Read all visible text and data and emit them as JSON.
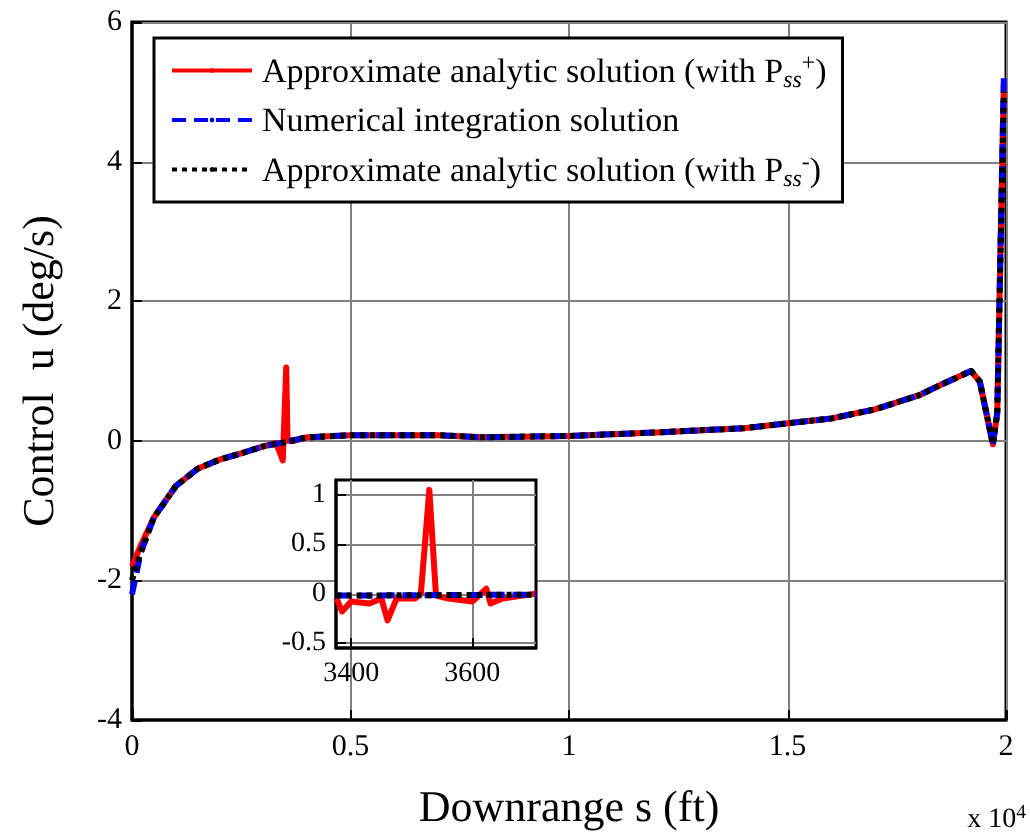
{
  "chart_data": [
    {
      "type": "line",
      "xlabel": "Downrange s (ft)",
      "ylabel": "Control  u (deg/s)",
      "annotations": [
        "x 10$^{4}$"
      ],
      "xlim": [
        0,
        2
      ],
      "ylim": [
        -4,
        6
      ],
      "xticks": [
        0,
        0.5,
        1,
        1.5,
        2
      ],
      "yticks": [
        -4,
        -2,
        0,
        2,
        4,
        6
      ],
      "grid": true,
      "legend": "top left",
      "marker": "none",
      "series": [
        {
          "name": "Approximate analytic solution (with P$_{ss}$$^{+}$)",
          "color": "#ff0000",
          "line_style": "solid",
          "x": [
            0,
            0.02,
            0.05,
            0.1,
            0.15,
            0.2,
            0.25,
            0.3,
            0.33,
            0.345,
            0.3529,
            0.356,
            0.37,
            0.4,
            0.5,
            0.7,
            0.8,
            1.0,
            1.2,
            1.4,
            1.5,
            1.6,
            1.7,
            1.8,
            1.85,
            1.92,
            1.94,
            1.97,
            1.98,
            1.995
          ],
          "values": [
            -1.8,
            -1.5,
            -1.1,
            -0.65,
            -0.4,
            -0.27,
            -0.18,
            -0.08,
            -0.03,
            -0.28,
            1.05,
            0.0,
            0.0,
            0.05,
            0.08,
            0.08,
            0.05,
            0.07,
            0.12,
            0.18,
            0.25,
            0.32,
            0.45,
            0.65,
            0.8,
            1.0,
            0.85,
            -0.05,
            0.4,
            5.1
          ]
        },
        {
          "name": "Numerical integration solution",
          "color": "#0000ff",
          "line_style": "dashed",
          "x": [
            0,
            0.02,
            0.05,
            0.1,
            0.15,
            0.2,
            0.25,
            0.3,
            0.35,
            0.4,
            0.5,
            0.7,
            0.8,
            1.0,
            1.2,
            1.4,
            1.5,
            1.6,
            1.7,
            1.8,
            1.85,
            1.92,
            1.94,
            1.97,
            1.98,
            1.995
          ],
          "values": [
            -2.2,
            -1.6,
            -1.1,
            -0.65,
            -0.4,
            -0.27,
            -0.18,
            -0.08,
            -0.02,
            0.05,
            0.08,
            0.08,
            0.05,
            0.07,
            0.12,
            0.18,
            0.25,
            0.32,
            0.45,
            0.65,
            0.8,
            1.0,
            0.85,
            -0.05,
            0.4,
            5.2
          ]
        },
        {
          "name": "Approximate analytic solution (with P$_{ss}$$^{-}$)",
          "color": "#000000",
          "line_style": "dotted",
          "x": [
            0,
            0.02,
            0.05,
            0.1,
            0.15,
            0.2,
            0.25,
            0.3,
            0.35,
            0.4,
            0.5,
            0.7,
            0.8,
            1.0,
            1.2,
            1.4,
            1.5,
            1.6,
            1.7,
            1.8,
            1.85,
            1.92,
            1.94,
            1.97,
            1.98,
            1.995
          ],
          "values": [
            -2.0,
            -1.6,
            -1.1,
            -0.65,
            -0.4,
            -0.27,
            -0.18,
            -0.08,
            -0.02,
            0.05,
            0.08,
            0.08,
            0.05,
            0.07,
            0.12,
            0.18,
            0.25,
            0.32,
            0.45,
            0.65,
            0.8,
            1.0,
            0.85,
            -0.05,
            0.4,
            5.0
          ]
        }
      ]
    },
    {
      "type": "line",
      "xlim": [
        3375,
        3705
      ],
      "ylim": [
        -0.55,
        1.15
      ],
      "xticks": [
        3400,
        3600
      ],
      "yticks": [
        -0.5,
        0,
        0.5,
        1
      ],
      "grid": true,
      "marker": "none",
      "series": [
        {
          "color": "#ff0000",
          "line_style": "solid",
          "x": [
            3376,
            3385,
            3400,
            3430,
            3450,
            3460,
            3475,
            3505,
            3515,
            3529,
            3540,
            3560,
            3600,
            3623,
            3630,
            3650,
            3705
          ],
          "values": [
            -0.05,
            -0.18,
            -0.08,
            -0.1,
            -0.05,
            -0.27,
            -0.05,
            -0.05,
            0.0,
            1.05,
            -0.02,
            -0.05,
            -0.08,
            0.05,
            -0.1,
            -0.05,
            0.0
          ]
        },
        {
          "color": "#0000ff",
          "line_style": "dashed",
          "x": [
            3376,
            3705
          ],
          "values": [
            -0.02,
            -0.01
          ]
        },
        {
          "color": "#000000",
          "line_style": "dotted",
          "x": [
            3376,
            3705
          ],
          "values": [
            -0.02,
            -0.01
          ]
        }
      ]
    }
  ]
}
